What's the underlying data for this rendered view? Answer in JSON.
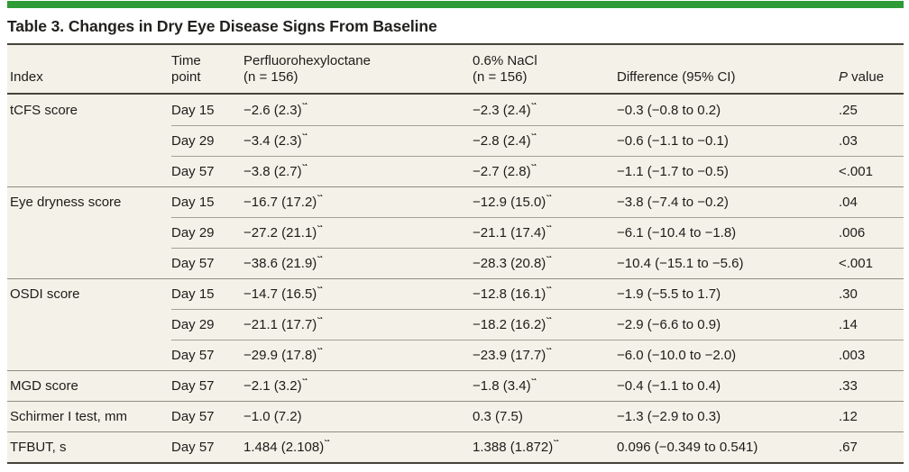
{
  "accent_color": "#2d9b38",
  "table_background": "#f4f2e8",
  "table": {
    "title": "Table 3. Changes in Dry Eye Disease Signs From Baseline",
    "columns": {
      "index": "Index",
      "time_line1": "Time",
      "time_line2": "point",
      "pfho_line1": "Perfluorohexyloctane",
      "pfho_line2": "(n = 156)",
      "nacl_line1": "0.6% NaCl",
      "nacl_line2": "(n = 156)",
      "difference": "Difference (95% CI)",
      "p_italic": "P",
      "p_rest": " value"
    },
    "rows": [
      {
        "index": "tCFS score",
        "time": "Day 15",
        "pfho": "−2.6 (2.3)",
        "pfho_sup": "a",
        "nacl": "−2.3 (2.4)",
        "nacl_sup": "a",
        "diff": "−0.3 (−0.8 to 0.2)",
        "p": ".25",
        "group_start": true
      },
      {
        "index": "",
        "time": "Day 29",
        "pfho": "−3.4 (2.3)",
        "pfho_sup": "a",
        "nacl": "−2.8 (2.4)",
        "nacl_sup": "a",
        "diff": "−0.6 (−1.1 to −0.1)",
        "p": ".03",
        "group_start": false
      },
      {
        "index": "",
        "time": "Day 57",
        "pfho": "−3.8 (2.7)",
        "pfho_sup": "a",
        "nacl": "−2.7 (2.8)",
        "nacl_sup": "a",
        "diff": "−1.1 (−1.7 to −0.5)",
        "p": "<.001",
        "group_start": false
      },
      {
        "index": "Eye dryness score",
        "time": "Day 15",
        "pfho": "−16.7 (17.2)",
        "pfho_sup": "a",
        "nacl": "−12.9 (15.0)",
        "nacl_sup": "a",
        "diff": "−3.8 (−7.4 to −0.2)",
        "p": ".04",
        "group_start": true
      },
      {
        "index": "",
        "time": "Day 29",
        "pfho": "−27.2 (21.1)",
        "pfho_sup": "a",
        "nacl": "−21.1 (17.4)",
        "nacl_sup": "a",
        "diff": "−6.1 (−10.4 to −1.8)",
        "p": ".006",
        "group_start": false
      },
      {
        "index": "",
        "time": "Day 57",
        "pfho": "−38.6 (21.9)",
        "pfho_sup": "a",
        "nacl": "−28.3 (20.8)",
        "nacl_sup": "a",
        "diff": "−10.4 (−15.1 to −5.6)",
        "p": "<.001",
        "group_start": false
      },
      {
        "index": "OSDI score",
        "time": "Day 15",
        "pfho": "−14.7 (16.5)",
        "pfho_sup": "a",
        "nacl": "−12.8 (16.1)",
        "nacl_sup": "a",
        "diff": "−1.9 (−5.5 to 1.7)",
        "p": ".30",
        "group_start": true
      },
      {
        "index": "",
        "time": "Day 29",
        "pfho": "−21.1 (17.7)",
        "pfho_sup": "a",
        "nacl": "−18.2 (16.2)",
        "nacl_sup": "a",
        "diff": "−2.9 (−6.6 to 0.9)",
        "p": ".14",
        "group_start": false
      },
      {
        "index": "",
        "time": "Day 57",
        "pfho": "−29.9 (17.8)",
        "pfho_sup": "a",
        "nacl": "−23.9 (17.7)",
        "nacl_sup": "a",
        "diff": "−6.0 (−10.0 to −2.0)",
        "p": ".003",
        "group_start": false
      },
      {
        "index": "MGD score",
        "time": "Day 57",
        "pfho": "−2.1 (3.2)",
        "pfho_sup": "a",
        "nacl": "−1.8 (3.4)",
        "nacl_sup": "a",
        "diff": "−0.4 (−1.1 to 0.4)",
        "p": ".33",
        "group_start": true
      },
      {
        "index": "Schirmer I test, mm",
        "time": "Day 57",
        "pfho": "−1.0 (7.2)",
        "pfho_sup": "",
        "nacl": "0.3 (7.5)",
        "nacl_sup": "",
        "diff": "−1.3 (−2.9 to 0.3)",
        "p": ".12",
        "group_start": true
      },
      {
        "index": "TFBUT, s",
        "time": "Day 57",
        "pfho": "1.484 (2.108)",
        "pfho_sup": "a",
        "nacl": "1.388 (1.872)",
        "nacl_sup": "a",
        "diff": "0.096 (−0.349 to 0.541)",
        "p": ".67",
        "group_start": true
      }
    ]
  }
}
